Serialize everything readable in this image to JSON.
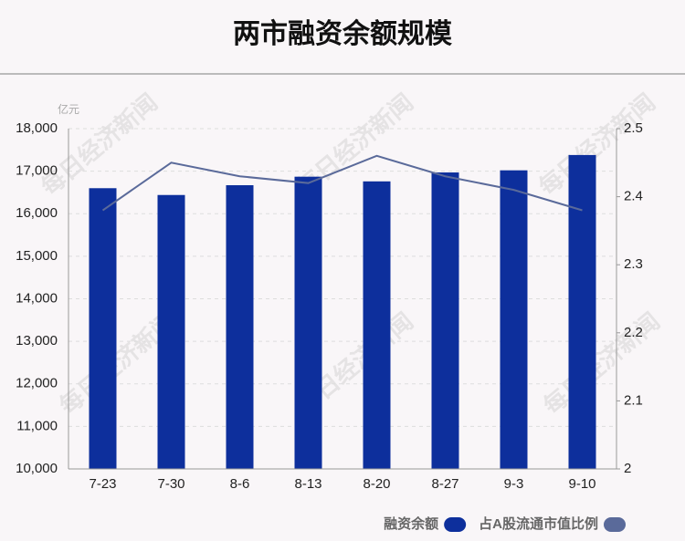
{
  "chart_data": {
    "type": "bar-line",
    "title": "两市融资余额规模",
    "y_unit": "亿元",
    "watermark": "每日经济新闻",
    "categories": [
      "7-23",
      "7-30",
      "8-6",
      "8-13",
      "8-20",
      "8-27",
      "9-3",
      "9-10"
    ],
    "series": [
      {
        "name": "融资余额",
        "type": "bar",
        "color": "#0d2f9c",
        "values": [
          16600,
          16440,
          16670,
          16870,
          16760,
          16970,
          17020,
          17380
        ]
      },
      {
        "name": "占A股流通市值比例",
        "type": "line",
        "axis": "y2",
        "color": "#5a6a9a",
        "values": [
          2.38,
          2.45,
          2.43,
          2.42,
          2.46,
          2.43,
          2.41,
          2.38
        ]
      }
    ],
    "ylim": [
      10000,
      18000
    ],
    "yticks": [
      {
        "value": 10000,
        "label": "10,000"
      },
      {
        "value": 11000,
        "label": "11,000"
      },
      {
        "value": 12000,
        "label": "12,000"
      },
      {
        "value": 13000,
        "label": "13,000"
      },
      {
        "value": 14000,
        "label": "14,000"
      },
      {
        "value": 15000,
        "label": "15,000"
      },
      {
        "value": 16000,
        "label": "16,000"
      },
      {
        "value": 17000,
        "label": "17,000"
      },
      {
        "value": 18000,
        "label": "18,000"
      }
    ],
    "y2lim": [
      2,
      2.5
    ],
    "y2ticks": [
      2,
      2.1,
      2.2,
      2.3,
      2.4,
      2.5
    ],
    "grid": true,
    "legend": "bottom-right"
  }
}
